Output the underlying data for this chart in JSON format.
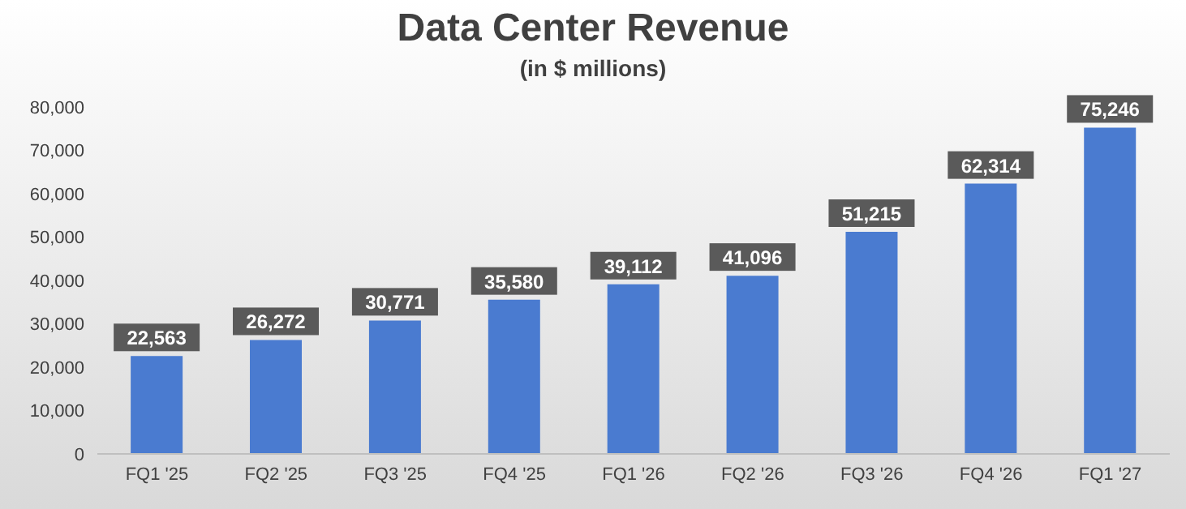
{
  "chart_data": {
    "type": "bar",
    "title": "Data Center Revenue",
    "subtitle": "(in $ millions)",
    "categories": [
      "FQ1 '25",
      "FQ2 '25",
      "FQ3 '25",
      "FQ4 '25",
      "FQ1 '26",
      "FQ2 '26",
      "FQ3 '26",
      "FQ4 '26",
      "FQ1 '27"
    ],
    "values": [
      22563,
      26272,
      30771,
      35580,
      39112,
      41096,
      51215,
      62314,
      75246
    ],
    "color": "#4a7bd0",
    "ylim": [
      0,
      80000
    ],
    "yticks": [
      0,
      {
        "value": 10000,
        "label": "10,000"
      },
      {
        "value": 20000,
        "label": "20,000"
      },
      {
        "value": 30000,
        "label": "30,000"
      },
      {
        "value": 40000,
        "label": "40,000"
      },
      {
        "value": 50000,
        "label": "50,000"
      },
      {
        "value": 60000,
        "label": "60,000"
      },
      {
        "value": 70000,
        "label": "70,000"
      },
      {
        "value": 80000,
        "label": "80,000"
      }
    ],
    "value_labels": [
      "22,563",
      "26,272",
      "30,771",
      "35,580",
      "39,112",
      "41,096",
      "51,215",
      "62,314",
      "75,246"
    ],
    "grid": false,
    "legend": false
  }
}
